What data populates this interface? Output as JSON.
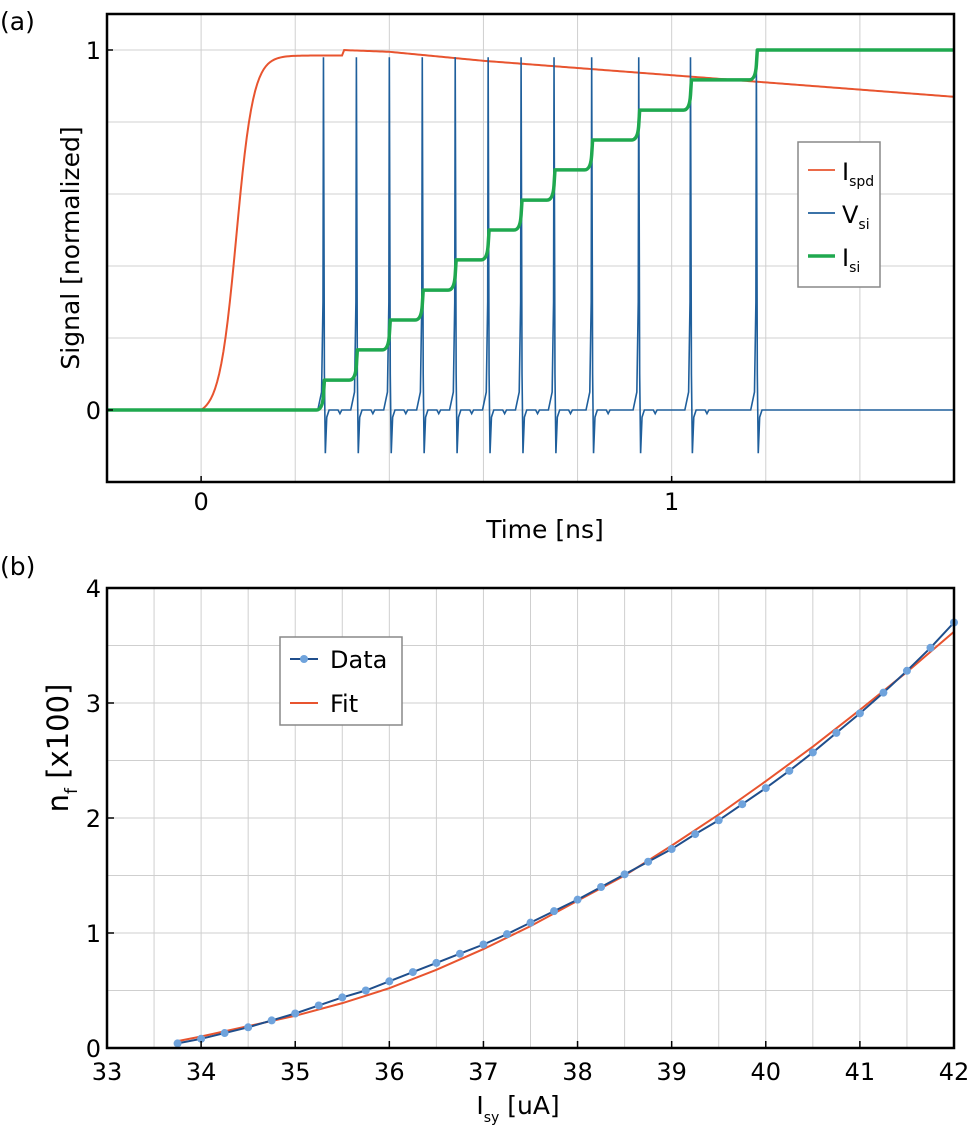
{
  "panel_a": {
    "label": "(a)",
    "xlabel": "Time [ns]",
    "ylabel": "Signal [normalized]",
    "xticks": [
      "0",
      "1"
    ],
    "yticks": [
      "0",
      "1"
    ],
    "legend": [
      {
        "main": "I",
        "sub": "spd",
        "color": "#e8542f"
      },
      {
        "main": "V",
        "sub": "si",
        "color": "#1f5f9c"
      },
      {
        "main": "I",
        "sub": "si",
        "color": "#1fa84f"
      }
    ]
  },
  "panel_b": {
    "label": "(b)",
    "xlabel_main": "I",
    "xlabel_sub": "sy",
    "xlabel_rest": " [uA]",
    "ylabel_main": "n",
    "ylabel_sub": "f",
    "ylabel_rest": " [x100]",
    "xticks": [
      "33",
      "34",
      "35",
      "36",
      "37",
      "38",
      "39",
      "40",
      "41",
      "42"
    ],
    "yticks": [
      "0",
      "1",
      "2",
      "3",
      "4"
    ],
    "legend": [
      {
        "label": "Data",
        "color": "#1f4e8c",
        "marker_color": "#6fa3dc"
      },
      {
        "label": "Fit",
        "color": "#e8542f"
      }
    ]
  },
  "chart_data": [
    {
      "type": "line",
      "xlabel": "Time [ns]",
      "ylabel": "Signal [normalized]",
      "xlim": [
        -0.2,
        1.6
      ],
      "ylim": [
        -0.2,
        1.1
      ],
      "grid": true,
      "legend_position": "right",
      "series": [
        {
          "name": "I_spd",
          "color": "#e8542f",
          "x": [
            -0.2,
            0.0,
            0.05,
            0.1,
            0.15,
            0.2,
            0.3,
            0.4,
            0.6,
            0.8,
            1.0,
            1.2,
            1.4,
            1.6
          ],
          "y": [
            0,
            0,
            0.25,
            0.72,
            0.93,
            0.98,
            1.0,
            0.995,
            0.97,
            0.95,
            0.93,
            0.91,
            0.89,
            0.87
          ]
        },
        {
          "name": "V_si",
          "color": "#1f5f9c",
          "spike_times": [
            0.26,
            0.33,
            0.4,
            0.47,
            0.54,
            0.61,
            0.68,
            0.75,
            0.83,
            0.93,
            1.04,
            1.18
          ],
          "baseline": 0,
          "peak": 0.98,
          "trough": -0.12
        },
        {
          "name": "I_si",
          "color": "#1fa84f",
          "x": [
            -0.2,
            0.26,
            0.33,
            0.4,
            0.47,
            0.54,
            0.61,
            0.68,
            0.75,
            0.83,
            0.93,
            1.04,
            1.18,
            1.6
          ],
          "y": [
            0,
            0.083,
            0.167,
            0.25,
            0.333,
            0.417,
            0.5,
            0.583,
            0.667,
            0.75,
            0.833,
            0.917,
            1.0,
            1.0
          ]
        }
      ]
    },
    {
      "type": "line",
      "xlabel": "I_sy [uA]",
      "ylabel": "n_f [x100]",
      "xlim": [
        33,
        42
      ],
      "ylim": [
        0,
        4
      ],
      "grid": true,
      "legend_position": "upper-left",
      "series": [
        {
          "name": "Data",
          "color": "#1f4e8c",
          "marker_color": "#6fa3dc",
          "x": [
            33.75,
            34.0,
            34.25,
            34.5,
            34.75,
            35.0,
            35.25,
            35.5,
            35.75,
            36.0,
            36.25,
            36.5,
            36.75,
            37.0,
            37.25,
            37.5,
            37.75,
            38.0,
            38.25,
            38.5,
            38.75,
            39.0,
            39.25,
            39.5,
            39.75,
            40.0,
            40.25,
            40.5,
            40.75,
            41.0,
            41.25,
            41.5,
            41.75,
            42.0
          ],
          "y": [
            0.04,
            0.08,
            0.13,
            0.18,
            0.24,
            0.3,
            0.37,
            0.44,
            0.5,
            0.58,
            0.66,
            0.74,
            0.82,
            0.9,
            0.99,
            1.09,
            1.19,
            1.29,
            1.4,
            1.51,
            1.62,
            1.73,
            1.86,
            1.98,
            2.12,
            2.26,
            2.41,
            2.57,
            2.74,
            2.91,
            3.09,
            3.28,
            3.48,
            3.7
          ]
        },
        {
          "name": "Fit",
          "color": "#e8542f",
          "x": [
            33.75,
            34.0,
            34.5,
            35.0,
            35.5,
            36.0,
            36.5,
            37.0,
            37.5,
            38.0,
            38.5,
            39.0,
            39.5,
            40.0,
            40.5,
            41.0,
            41.5,
            42.0
          ],
          "y": [
            0.06,
            0.1,
            0.19,
            0.28,
            0.39,
            0.52,
            0.68,
            0.86,
            1.06,
            1.28,
            1.5,
            1.76,
            2.03,
            2.32,
            2.62,
            2.94,
            3.27,
            3.62
          ]
        }
      ]
    }
  ]
}
